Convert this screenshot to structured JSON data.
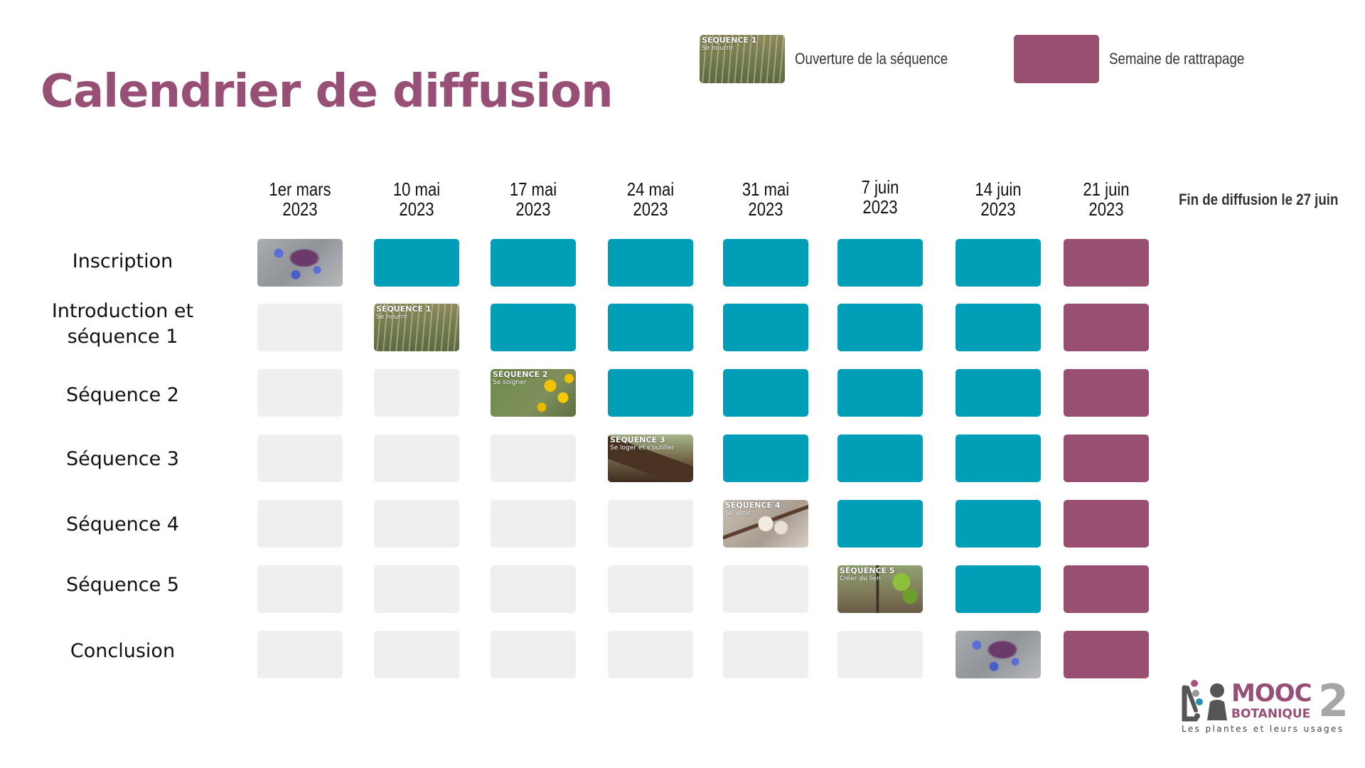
{
  "title": "Calendrier de diffusion",
  "legend": [
    {
      "key": "opening",
      "label": "Ouverture de la séquence",
      "swatch_title": "SÉQUENCE 1",
      "swatch_sub": "Se nourrir"
    },
    {
      "key": "catchup",
      "label": "Semaine de rattrapage",
      "color": "#984f70"
    }
  ],
  "colors": {
    "title": "#984f75",
    "open_week": "#009fb7",
    "catchup_week": "#984f70",
    "empty": "#efefef"
  },
  "columns": [
    {
      "line1": "1er mars",
      "line2": "2023"
    },
    {
      "line1": "10 mai",
      "line2": "2023"
    },
    {
      "line1": "17 mai",
      "line2": "2023"
    },
    {
      "line1": "24 mai",
      "line2": "2023"
    },
    {
      "line1": "31 mai",
      "line2": "2023"
    },
    {
      "line1": "7 juin",
      "line2": "2023"
    },
    {
      "line1": "14 juin",
      "line2": "2023"
    },
    {
      "line1": "21 juin",
      "line2": "2023"
    }
  ],
  "end_note": "Fin de diffusion le 27 juin",
  "rows": [
    {
      "label": "Inscription",
      "cells": [
        "thumb-flower",
        "open",
        "open",
        "open",
        "open",
        "open",
        "open",
        "catchup"
      ]
    },
    {
      "label": "Introduction et séquence 1",
      "cells": [
        "empty",
        "thumb-1",
        "open",
        "open",
        "open",
        "open",
        "open",
        "catchup"
      ]
    },
    {
      "label": "Séquence 2",
      "cells": [
        "empty",
        "empty",
        "thumb-2",
        "open",
        "open",
        "open",
        "open",
        "catchup"
      ]
    },
    {
      "label": "Séquence 3",
      "cells": [
        "empty",
        "empty",
        "empty",
        "thumb-3",
        "open",
        "open",
        "open",
        "catchup"
      ]
    },
    {
      "label": "Séquence 4",
      "cells": [
        "empty",
        "empty",
        "empty",
        "empty",
        "thumb-4",
        "open",
        "open",
        "catchup"
      ]
    },
    {
      "label": "Séquence 5",
      "cells": [
        "empty",
        "empty",
        "empty",
        "empty",
        "empty",
        "thumb-5",
        "open",
        "catchup"
      ]
    },
    {
      "label": "Conclusion",
      "cells": [
        "empty",
        "empty",
        "empty",
        "empty",
        "empty",
        "empty",
        "thumb-flower",
        "catchup"
      ]
    }
  ],
  "thumbnails": {
    "thumb-flower": {
      "title": "",
      "sub": "",
      "bg": "bg-flower"
    },
    "thumb-1": {
      "title": "SÉQUENCE 1",
      "sub": "Se nourrir",
      "bg": "bg-wheat"
    },
    "thumb-2": {
      "title": "SÉQUENCE 2",
      "sub": "Se soigner",
      "bg": "bg-yellow"
    },
    "thumb-3": {
      "title": "SÉQUENCE 3",
      "sub": "Se loger et s'outiller",
      "bg": "bg-tree"
    },
    "thumb-4": {
      "title": "SÉQUENCE 4",
      "sub": "Se vêtir",
      "bg": "bg-cotton"
    },
    "thumb-5": {
      "title": "SÉQUENCE 5",
      "sub": "Créer du lien",
      "bg": "bg-vine"
    }
  },
  "logo": {
    "line1": "MOOC",
    "line2": "BOTANIQUE",
    "number": "2",
    "tagline": "Les plantes et leurs usages"
  }
}
